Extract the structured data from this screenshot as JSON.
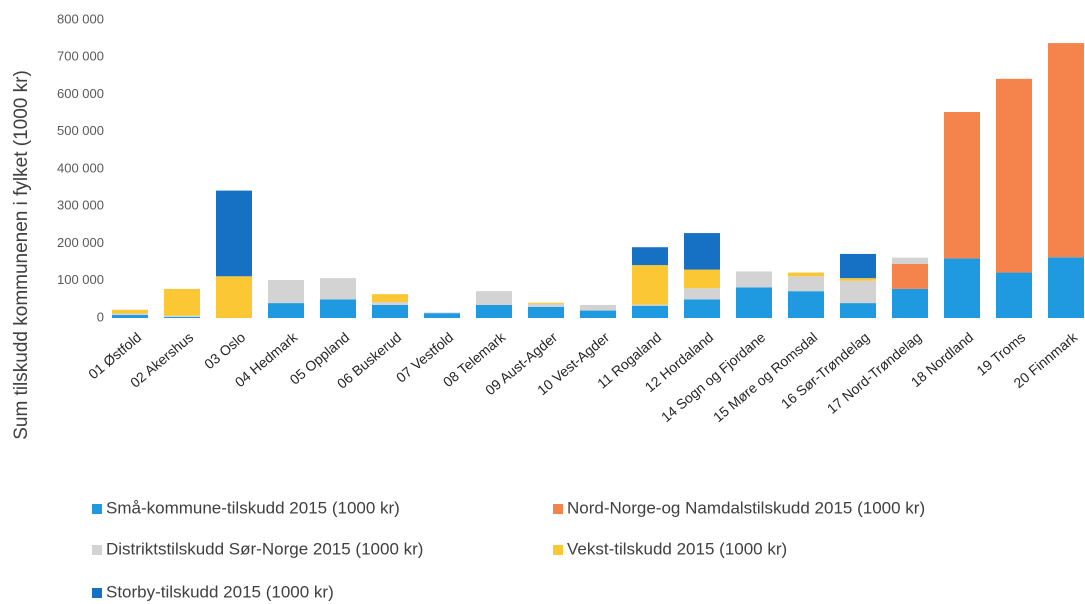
{
  "chart_data": {
    "type": "stacked_bar",
    "y_label": "Sum tilskudd kommunenen i fylket (1000 kr)",
    "categories": [
      "01 Østfold",
      "02 Akershus",
      "03 Oslo",
      "04 Hedmark",
      "05 Oppland",
      "06 Buskerud",
      "07 Vestfold",
      "08 Telemark",
      "09 Aust-Agder",
      "10 Vest-Agder",
      "11 Rogaland",
      "12 Hordaland",
      "14 Sogn og Fjordane",
      "15 Møre og Romsdal",
      "16 Sør-Trøndelag",
      "17 Nord-Trøndelag",
      "18 Nordland",
      "19 Troms",
      "20 Finnmark"
    ],
    "series": [
      {
        "name": "Små-kommune-tilskudd 2015 (1000 kr)",
        "color": "#1f9ae0",
        "values": [
          8000,
          3000,
          0,
          40000,
          50000,
          35000,
          13000,
          35000,
          30000,
          20000,
          33000,
          50000,
          82000,
          72000,
          40000,
          78000,
          160000,
          122000,
          163000
        ]
      },
      {
        "name": "Nord-Norge-og Namdalstilskudd 2015 (1000 kr)",
        "color": "#f5844c",
        "values": [
          0,
          0,
          0,
          0,
          0,
          0,
          0,
          0,
          0,
          0,
          0,
          0,
          0,
          0,
          0,
          67000,
          393000,
          520000,
          575000
        ]
      },
      {
        "name": "Distriktstilskudd Sør-Norge 2015  (1000 kr)",
        "color": "#d3d3d3",
        "values": [
          4000,
          3000,
          0,
          62000,
          57000,
          8000,
          2000,
          37000,
          8000,
          15000,
          3000,
          30000,
          43000,
          40000,
          60000,
          17000,
          0,
          0,
          0
        ]
      },
      {
        "name": "Vekst-tilskudd 2015 (1000 kr)",
        "color": "#fcc734",
        "values": [
          10000,
          72000,
          112000,
          0,
          0,
          21000,
          0,
          0,
          3000,
          0,
          106000,
          50000,
          0,
          10000,
          7000,
          0,
          0,
          0,
          0
        ]
      },
      {
        "name": "Storby-tilskudd 2015 (1000 kr)",
        "color": "#1670c4",
        "values": [
          0,
          0,
          230000,
          0,
          0,
          0,
          0,
          0,
          0,
          0,
          48000,
          98000,
          0,
          0,
          65000,
          0,
          0,
          0,
          0
        ]
      }
    ],
    "ylim": [
      0,
      800000
    ],
    "yticks": [
      0,
      {
        "value": 100000,
        "label": "100 000"
      },
      {
        "value": 200000,
        "label": "200 000"
      },
      {
        "value": 300000,
        "label": "300 000"
      },
      {
        "value": 400000,
        "label": "400 000"
      },
      {
        "value": 500000,
        "label": "500 000"
      },
      {
        "value": 600000,
        "label": "600 000"
      },
      {
        "value": 700000,
        "label": "700 000"
      },
      {
        "value": 800000,
        "label": "800 000"
      }
    ],
    "grid": false,
    "legend": "bottom"
  }
}
